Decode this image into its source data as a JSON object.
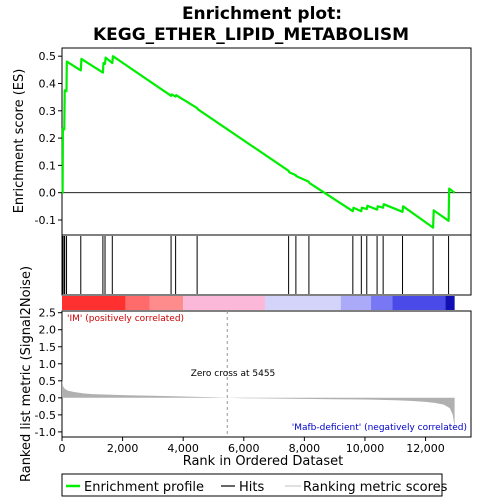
{
  "chart_data": {
    "type": "line",
    "title_line1": "Enrichment plot:",
    "title_line2": "KEGG_ETHER_LIPID_METABOLISM",
    "es_panel": {
      "ylabel": "Enrichment score (ES)",
      "ylim": [
        -0.155,
        0.53
      ],
      "yticks": [
        "-0.1",
        "0.0",
        "0.1",
        "0.2",
        "0.3",
        "0.4",
        "0.5"
      ],
      "ytick_values": [
        -0.1,
        0.0,
        0.1,
        0.2,
        0.3,
        0.4,
        0.5
      ],
      "line_color": "#00ee00",
      "series": [
        {
          "x": [
            0,
            20,
            30,
            75,
            90,
            150,
            160,
            620,
            640,
            1350,
            1370,
            1420,
            1440,
            1660,
            1680,
            3600,
            3620,
            3750,
            3770,
            4460,
            4480,
            7480,
            7500,
            7720,
            7740,
            8150,
            8170,
            9600,
            9620,
            9880,
            9900,
            10060,
            10080,
            10400,
            10420,
            10600,
            10620,
            11240,
            11260,
            12250,
            12270,
            12760,
            12780,
            12960
          ],
          "y": [
            0.0,
            0.0,
            0.235,
            0.232,
            0.375,
            0.372,
            0.48,
            0.448,
            0.49,
            0.44,
            0.475,
            0.472,
            0.495,
            0.475,
            0.5,
            0.355,
            0.36,
            0.352,
            0.357,
            0.31,
            0.306,
            0.08,
            0.075,
            0.064,
            0.06,
            0.04,
            0.035,
            -0.068,
            -0.055,
            -0.068,
            -0.055,
            -0.06,
            -0.048,
            -0.062,
            -0.05,
            -0.055,
            -0.042,
            -0.07,
            -0.05,
            -0.128,
            -0.065,
            -0.103,
            0.015,
            0.0
          ]
        }
      ]
    },
    "hits_panel": {
      "hit_positions": [
        30,
        75,
        90,
        150,
        620,
        1350,
        1420,
        1660,
        3600,
        3750,
        4460,
        7480,
        7720,
        8150,
        9600,
        9880,
        10060,
        10400,
        10600,
        11240,
        12250,
        12760
      ]
    },
    "metric_panel": {
      "ylabel": "Ranked list metric (Signal2Noise)",
      "xlabel": "Rank in Ordered Dataset",
      "ylim": [
        -1.15,
        2.55
      ],
      "yticks": [
        "-1.0",
        "-0.5",
        "0.0",
        "0.5",
        "1.0",
        "1.5",
        "2.0",
        "2.5"
      ],
      "ytick_values": [
        -1.0,
        -0.5,
        0.0,
        0.5,
        1.0,
        1.5,
        2.0,
        2.5
      ],
      "xlim": [
        0,
        13500
      ],
      "xticks": [
        "0",
        "2,000",
        "4,000",
        "6,000",
        "8,000",
        "10,000",
        "12,000"
      ],
      "xtick_values": [
        0,
        2000,
        4000,
        6000,
        8000,
        10000,
        12000
      ],
      "fill_color": "#b0b0b0",
      "zero_cross": 5455,
      "zero_cross_label": "Zero cross at 5455",
      "pos_label": "'IM' (positively correlated)",
      "neg_label": "'Mafb-deficient' (negatively correlated)",
      "pos_label_color": "#cc0000",
      "neg_label_color": "#0000cc",
      "metric_curve": {
        "x": [
          0,
          10,
          40,
          100,
          200,
          400,
          700,
          1000,
          2000,
          3000,
          4000,
          5000,
          5455,
          6000,
          7000,
          8000,
          9000,
          10000,
          11000,
          11500,
          12000,
          12300,
          12600,
          12800,
          12900,
          12950,
          12960
        ],
        "y": [
          0.55,
          0.47,
          0.33,
          0.26,
          0.21,
          0.17,
          0.13,
          0.11,
          0.08,
          0.06,
          0.04,
          0.02,
          0.0,
          -0.01,
          -0.02,
          -0.03,
          -0.04,
          -0.05,
          -0.07,
          -0.09,
          -0.12,
          -0.15,
          -0.2,
          -0.3,
          -0.5,
          -0.8,
          -1.1
        ]
      }
    },
    "color_bar": {
      "segments": [
        {
          "from": 0,
          "to": 2100,
          "color": "#ff3030"
        },
        {
          "from": 2100,
          "to": 2900,
          "color": "#ff6a6a"
        },
        {
          "from": 2900,
          "to": 4000,
          "color": "#ff8c8c"
        },
        {
          "from": 4000,
          "to": 6700,
          "color": "#fcb8d8"
        },
        {
          "from": 6700,
          "to": 9200,
          "color": "#d4d4fa"
        },
        {
          "from": 9200,
          "to": 10200,
          "color": "#aaaaf8"
        },
        {
          "from": 10200,
          "to": 10900,
          "color": "#7878f4"
        },
        {
          "from": 10900,
          "to": 12650,
          "color": "#4a4ae8"
        },
        {
          "from": 12650,
          "to": 12960,
          "color": "#1010b4"
        }
      ]
    },
    "legend": {
      "items": [
        {
          "label": "Enrichment profile",
          "color": "#00ee00",
          "kind": "profile"
        },
        {
          "label": "Hits",
          "color": "#000000",
          "kind": "hits"
        },
        {
          "label": "Ranking metric scores",
          "color": "#c0c0c0",
          "kind": "metric"
        }
      ]
    }
  }
}
